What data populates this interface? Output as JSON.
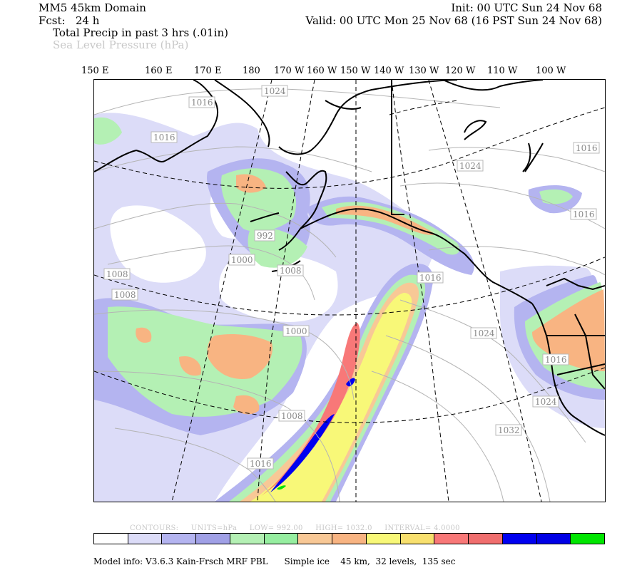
{
  "header": {
    "domain": "MM5 45km Domain",
    "forecast": "Fcst:   24 h",
    "init": "Init: 00 UTC Sun 24 Nov 68",
    "valid": "Valid: 00 UTC Mon 25 Nov 68 (16 PST Sun 24 Nov 68)",
    "field1": "Total Precip in past 3 hrs (.01in)",
    "field2": "Sea Level Pressure (hPa)"
  },
  "longitude_labels": [
    "150 E",
    "160 E",
    "170 E",
    "180",
    "170 W",
    "160 W",
    "150 W",
    "140 W",
    "130 W",
    "120 W",
    "110 W",
    "100 W"
  ],
  "isobar_labels": [
    "1024",
    "1016",
    "1016",
    "1024",
    "1016",
    "1016",
    "992",
    "1000",
    "1008",
    "1008",
    "1008",
    "1016",
    "1000",
    "1024",
    "1016",
    "1024",
    "1008",
    "1032",
    "1016"
  ],
  "contour_info": {
    "contours": "CONTOURS:",
    "units": "UNITS=hPa",
    "low": "LOW=  992.00",
    "high": "HIGH=  1032.0",
    "interval": "INTERVAL=   4.0000"
  },
  "color_bar": {
    "colors": [
      "#ffffff",
      "#dcdcf8",
      "#b4b4f0",
      "#a0a0e6",
      "#b4f0b4",
      "#96eea0",
      "#f8c896",
      "#f8b482",
      "#f8f878",
      "#f8e06e",
      "#f87878",
      "#f06e6e",
      "#0000f0",
      "#0000e6",
      "#00e600"
    ]
  },
  "model_info": "Model info: V3.6.3 Kain-Frsch MRF PBL      Simple ice    45 km,  32 levels,  135 sec",
  "colors": {
    "frame": "#000000",
    "light_purple": "#dcdcf8",
    "purple": "#b4b4f0",
    "green": "#b4f0b4",
    "orange": "#f8b482",
    "yellow": "#f8f878",
    "red": "#f87878",
    "blue": "#0000f0",
    "bright_green": "#00e600"
  }
}
